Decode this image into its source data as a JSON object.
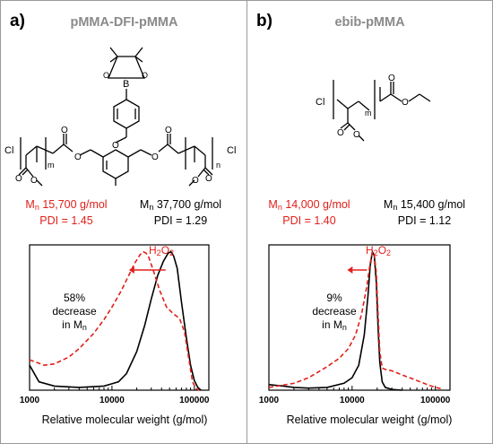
{
  "panels": {
    "a": {
      "letter": "a)",
      "title": "pMMA-DFI-pMMA",
      "before": {
        "mn_prefix": "M",
        "mn_sub": "n",
        "mn_value": " 37,700 g/mol",
        "pdi": "PDI = 1.29"
      },
      "after": {
        "mn_prefix": "M",
        "mn_sub": "n",
        "mn_value": " 15,700 g/mol",
        "pdi": "PDI = 1.45"
      },
      "reagent_main": "H",
      "reagent_sub1": "2",
      "reagent_mid": "O",
      "reagent_sub2": "2",
      "annotation_line1": "58%",
      "annotation_line2": "decrease",
      "annotation_line3_prefix": "in M",
      "annotation_line3_sub": "n",
      "structure_labels": {
        "cl": "Cl",
        "m": "m",
        "n": "n",
        "b": "B",
        "o": "O"
      }
    },
    "b": {
      "letter": "b)",
      "title": "ebib-pMMA",
      "before": {
        "mn_prefix": "M",
        "mn_sub": "n",
        "mn_value": " 15,400 g/mol",
        "pdi": "PDI = 1.12"
      },
      "after": {
        "mn_prefix": "M",
        "mn_sub": "n",
        "mn_value": " 14,000 g/mol",
        "pdi": "PDI = 1.40"
      },
      "reagent_main": "H",
      "reagent_sub1": "2",
      "reagent_mid": "O",
      "reagent_sub2": "2",
      "annotation_line1": "9%",
      "annotation_line2": "decrease",
      "annotation_line3_prefix": "in M",
      "annotation_line3_sub": "n",
      "structure_labels": {
        "cl": "Cl",
        "m": "m"
      }
    }
  },
  "colors": {
    "before": "#000000",
    "after": "#e0201b",
    "frame": "#9a9a9a"
  },
  "chart_data": [
    {
      "type": "line",
      "xlabel": "Relative molecular weight (g/mol)",
      "xscale": "log",
      "xlim": [
        1000,
        150000
      ],
      "ylim": [
        0,
        1.05
      ],
      "xticks": [
        "1000",
        "10000",
        "100000"
      ],
      "y_ticks_shown": false,
      "series": [
        {
          "style": "solid",
          "color": "#000000",
          "x": [
            1000,
            1300,
            2000,
            4000,
            8000,
            12000,
            15000,
            20000,
            25000,
            30000,
            36000,
            42000,
            48000,
            52000,
            56000,
            62000,
            70000,
            80000,
            90000,
            100000,
            110000,
            120000
          ],
          "y": [
            0.18,
            0.06,
            0.03,
            0.02,
            0.03,
            0.06,
            0.12,
            0.28,
            0.47,
            0.66,
            0.83,
            0.93,
            0.99,
            1.0,
            0.97,
            0.88,
            0.63,
            0.38,
            0.18,
            0.07,
            0.02,
            0.0
          ]
        },
        {
          "style": "dashed",
          "color": "#e0201b",
          "x": [
            1000,
            1500,
            2000,
            3000,
            4000,
            6000,
            8000,
            10000,
            13000,
            16000,
            19000,
            22000,
            24000,
            26000,
            28000,
            32000,
            38000,
            46000,
            56000,
            66000,
            76000,
            86000,
            95000,
            105000,
            115000
          ],
          "y": [
            0.22,
            0.18,
            0.19,
            0.24,
            0.3,
            0.41,
            0.51,
            0.6,
            0.72,
            0.83,
            0.92,
            0.98,
            1.0,
            0.99,
            0.96,
            0.86,
            0.72,
            0.6,
            0.55,
            0.52,
            0.42,
            0.22,
            0.06,
            0.01,
            0.0
          ]
        }
      ]
    },
    {
      "type": "line",
      "xlabel": "Relative molecular weight (g/mol)",
      "xscale": "log",
      "xlim": [
        1000,
        150000
      ],
      "ylim": [
        0,
        1.05
      ],
      "xticks": [
        "1000",
        "10000",
        "100000"
      ],
      "y_ticks_shown": false,
      "series": [
        {
          "style": "solid",
          "color": "#000000",
          "x": [
            1000,
            1500,
            2000,
            3000,
            5000,
            8000,
            10000,
            12000,
            14000,
            15500,
            16500,
            17500,
            18500,
            19500,
            20500,
            21500,
            23000,
            25000,
            30000,
            40000
          ],
          "y": [
            0.04,
            0.03,
            0.02,
            0.015,
            0.02,
            0.05,
            0.09,
            0.18,
            0.4,
            0.68,
            0.9,
            1.0,
            0.97,
            0.78,
            0.45,
            0.2,
            0.06,
            0.02,
            0.005,
            0.0
          ]
        },
        {
          "style": "dashed",
          "color": "#e0201b",
          "x": [
            1000,
            2000,
            3000,
            5000,
            7000,
            9000,
            11000,
            13000,
            15000,
            16500,
            17500,
            18500,
            19500,
            20500,
            21500,
            23000,
            25000,
            30000,
            40000,
            60000,
            80000,
            100000,
            120000
          ],
          "y": [
            0.02,
            0.05,
            0.09,
            0.17,
            0.23,
            0.3,
            0.4,
            0.55,
            0.75,
            0.92,
            1.0,
            0.98,
            0.85,
            0.55,
            0.28,
            0.16,
            0.15,
            0.14,
            0.11,
            0.07,
            0.04,
            0.02,
            0.01
          ]
        }
      ]
    }
  ]
}
